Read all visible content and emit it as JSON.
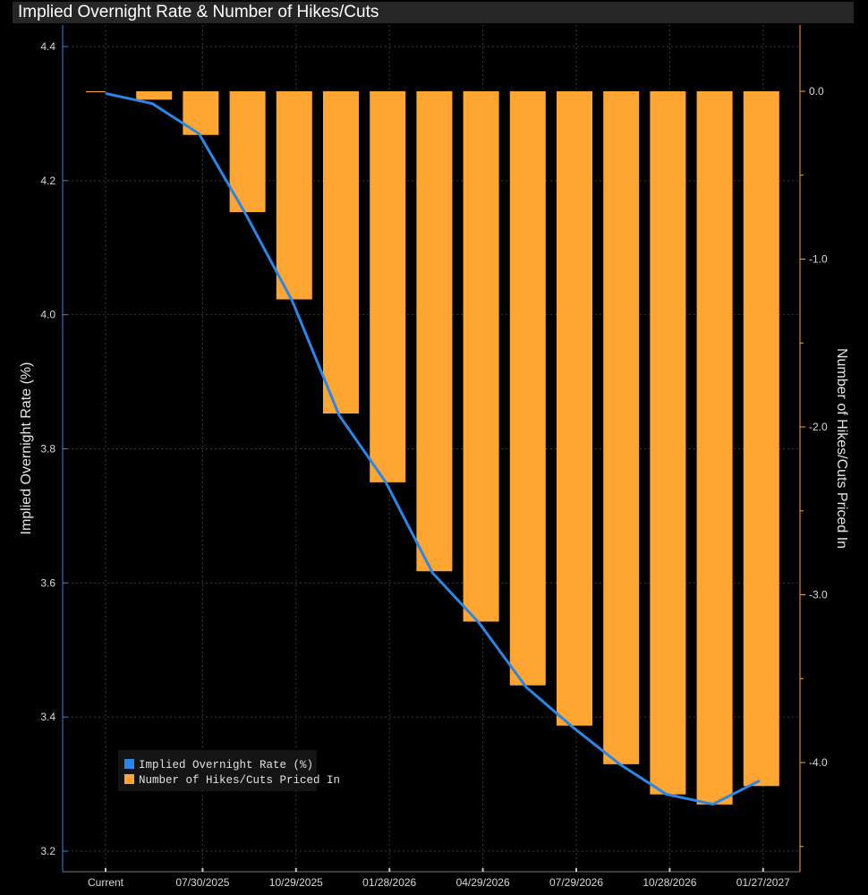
{
  "chart_data": {
    "type": "bar+line",
    "title": "Implied Overnight Rate & Number of Hikes/Cuts",
    "categories": [
      "Current",
      "",
      "07/30/2025",
      "",
      "10/29/2025",
      "",
      "01/28/2026",
      "",
      "04/29/2026",
      "",
      "07/29/2026",
      "",
      "10/28/2026",
      "",
      "01/27/2027"
    ],
    "x_tick_labels": [
      "Current",
      "07/30/2025",
      "10/29/2025",
      "01/28/2026",
      "04/29/2026",
      "07/29/2026",
      "10/28/2026",
      "01/27/2027"
    ],
    "series": [
      {
        "name": "Implied Overnight Rate (%)",
        "kind": "line",
        "axis": "left",
        "color": "#2a86e8",
        "values": [
          4.33,
          4.315,
          4.27,
          4.15,
          4.02,
          3.85,
          3.75,
          3.615,
          3.54,
          3.445,
          3.385,
          3.33,
          3.285,
          3.27,
          3.305
        ]
      },
      {
        "name": "Number of Hikes/Cuts Priced In",
        "kind": "bar",
        "axis": "right",
        "color": "#ffa531",
        "values": [
          -0.005,
          -0.05,
          -0.26,
          -0.72,
          -1.24,
          -1.92,
          -2.33,
          -2.86,
          -3.16,
          -3.54,
          -3.78,
          -4.01,
          -4.19,
          -4.25,
          -4.14
        ]
      }
    ],
    "ylabel_left": "Implied Overnight Rate (%)",
    "ylabel_right": "Number of Hikes/Cuts Priced In",
    "ylim_left": [
      3.2,
      4.4
    ],
    "yticks_left": [
      3.2,
      3.4,
      3.6,
      3.8,
      4.0,
      4.2,
      4.4
    ],
    "ylim_right": [
      -4.5,
      0.4
    ],
    "yticks_right_labeled": [
      0.0,
      -1.0,
      -2.0,
      -3.0,
      -4.0
    ],
    "legend_position": "bottom-left",
    "grid": true,
    "colors": {
      "background": "#000000",
      "grid": "#3a3a3a",
      "left_axis": "#2a86e8",
      "right_axis": "#ffa531"
    }
  }
}
